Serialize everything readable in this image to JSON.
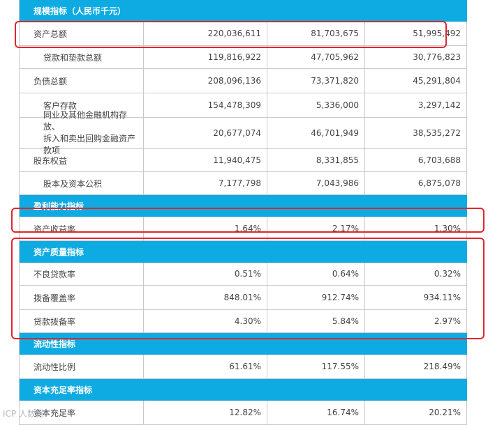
{
  "sections": {
    "scale": "规模指标（人民币千元）",
    "profitability": "盈利能力指标",
    "asset_quality": "资产质量指标",
    "liquidity": "流动性指标",
    "capital": "资本充足率指标"
  },
  "rows": {
    "total_assets": {
      "label": "资产总额",
      "v1": "220,036,611",
      "v2": "81,703,675",
      "v3": "51,995,492"
    },
    "loans": {
      "label": "贷款和垫款总额",
      "v1": "119,816,922",
      "v2": "47,705,962",
      "v3": "30,776,823"
    },
    "total_liabilities": {
      "label": "负债总额",
      "v1": "208,096,136",
      "v2": "73,371,820",
      "v3": "45,291,804"
    },
    "deposits": {
      "label": "客户存款",
      "v1": "154,478,309",
      "v2": "5,336,000",
      "v3": "3,297,142"
    },
    "interbank": {
      "label_line1": "同业及其他金融机构存放、",
      "label_line2": "拆入和卖出回购金融资产款项",
      "v1": "20,677,074",
      "v2": "46,701,949",
      "v3": "38,535,272"
    },
    "equity": {
      "label": "股东权益",
      "v1": "11,940,475",
      "v2": "8,331,855",
      "v3": "6,703,688"
    },
    "share_capital": {
      "label": "股本及资本公积",
      "v1": "7,177,798",
      "v2": "7,043,986",
      "v3": "6,875,078"
    },
    "roa": {
      "label": "资产收益率",
      "v1": "1.64%",
      "v2": "2.17%",
      "v3": "1.30%"
    },
    "npl": {
      "label": "不良贷款率",
      "v1": "0.51%",
      "v2": "0.64%",
      "v3": "0.32%"
    },
    "provision_coverage": {
      "label": "拨备覆盖率",
      "v1": "848.01%",
      "v2": "912.74%",
      "v3": "934.11%"
    },
    "loan_provision": {
      "label": "贷款拨备率",
      "v1": "4.30%",
      "v2": "5.84%",
      "v3": "2.97%"
    },
    "liquidity_ratio": {
      "label": "流动性比例",
      "v1": "61.61%",
      "v2": "117.55%",
      "v3": "218.49%"
    },
    "car": {
      "label": "资本充足率",
      "v1": "12.82%",
      "v2": "16.74%",
      "v3": "20.21%"
    }
  },
  "watermark": "ICP 人数据",
  "colors": {
    "section_bg": "#0eabe2",
    "highlight_border": "#e0262d"
  }
}
